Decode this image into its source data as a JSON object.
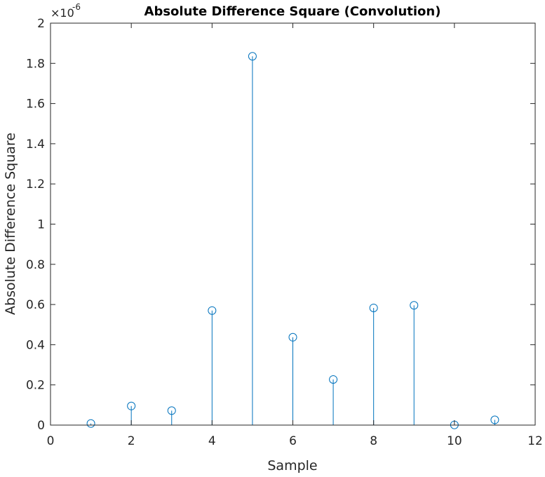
{
  "chart_data": {
    "type": "stem",
    "title": "Absolute Difference Square (Convolution)",
    "xlabel": "Sample",
    "ylabel": "Absolute Difference Square",
    "y_exponent_base": "×10",
    "y_exponent_power": "-6",
    "xlim": [
      0,
      12
    ],
    "ylim": [
      0,
      2
    ],
    "xticks": [
      0,
      2,
      4,
      6,
      8,
      10,
      12
    ],
    "yticks": [
      0,
      0.2,
      0.4,
      0.6,
      0.8,
      1,
      1.2,
      1.4,
      1.6,
      1.8,
      2
    ],
    "ytick_labels": [
      "0",
      "0.2",
      "0.4",
      "0.6",
      "0.8",
      "1",
      "1.2",
      "1.4",
      "1.6",
      "1.8",
      "2"
    ],
    "grid": false,
    "marker": "circle",
    "color": "#0072BD",
    "x": [
      1,
      2,
      3,
      4,
      5,
      6,
      7,
      8,
      9,
      10,
      11
    ],
    "values": [
      0.008,
      0.095,
      0.072,
      0.57,
      1.835,
      0.437,
      0.227,
      0.583,
      0.596,
      0.001,
      0.026
    ]
  }
}
